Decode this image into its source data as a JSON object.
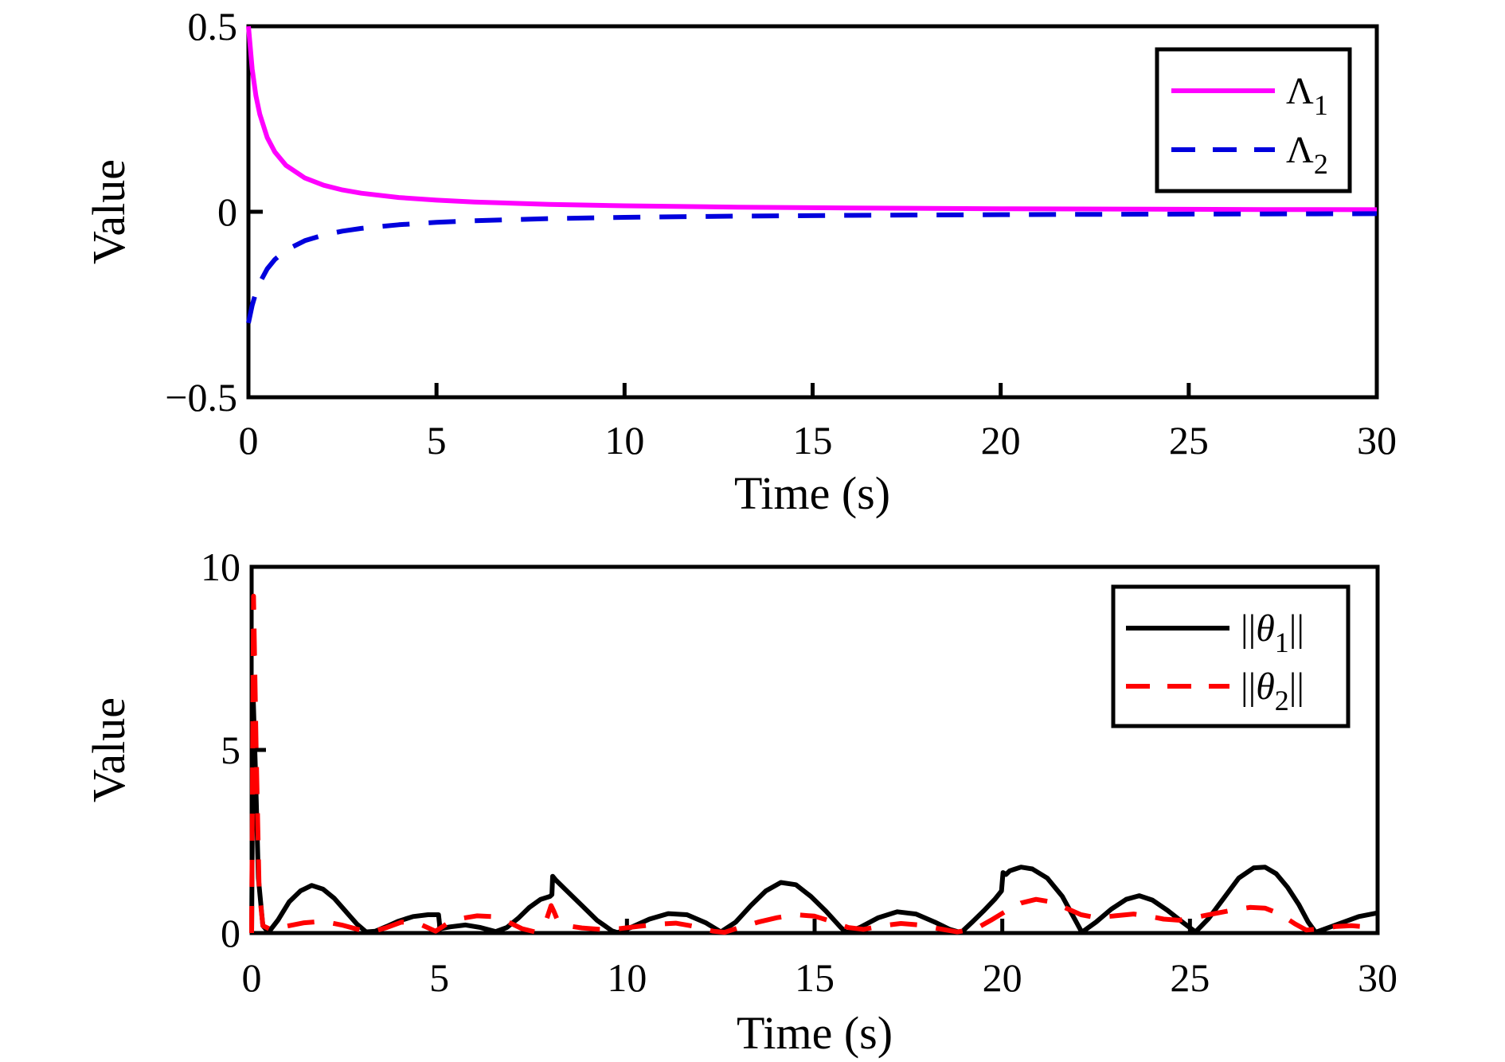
{
  "page": {
    "background": "#ffffff"
  },
  "chart_data": [
    {
      "id": "lambda-plot",
      "type": "line",
      "title": "",
      "xlabel": "Time (s)",
      "ylabel": "Value",
      "xlim": [
        0,
        30
      ],
      "ylim": [
        -0.5,
        0.5
      ],
      "grid": false,
      "legend_position": "top-right",
      "xticks": [
        {
          "v": 0,
          "label": "0"
        },
        {
          "v": 5,
          "label": "5"
        },
        {
          "v": 10,
          "label": "10"
        },
        {
          "v": 15,
          "label": "15"
        },
        {
          "v": 20,
          "label": "20"
        },
        {
          "v": 25,
          "label": "25"
        },
        {
          "v": 30,
          "label": "30"
        }
      ],
      "yticks": [
        {
          "v": 0.5,
          "label": "0.5"
        },
        {
          "v": 0,
          "label": "0"
        },
        {
          "v": -0.5,
          "label": "−0.5"
        }
      ],
      "series": [
        {
          "slug": "lambda1",
          "legend": {
            "prefix": "",
            "base": "Λ",
            "sub": "1",
            "suffix": "",
            "italic": false
          },
          "color": "#FF00FF",
          "style": "solid",
          "points": [
            [
              0,
              0.5
            ],
            [
              0.1,
              0.3846
            ],
            [
              0.2,
              0.3125
            ],
            [
              0.3,
              0.2632
            ],
            [
              0.5,
              0.2
            ],
            [
              0.7,
              0.1613
            ],
            [
              1,
              0.125
            ],
            [
              1.5,
              0.0909
            ],
            [
              2,
              0.0714
            ],
            [
              2.5,
              0.0588
            ],
            [
              3,
              0.05
            ],
            [
              4,
              0.0385
            ],
            [
              5,
              0.0313
            ],
            [
              6,
              0.0263
            ],
            [
              8,
              0.02
            ],
            [
              10,
              0.0161
            ],
            [
              13,
              0.0125
            ],
            [
              16,
              0.0102
            ],
            [
              20,
              0.0082
            ],
            [
              24,
              0.0068
            ],
            [
              27,
              0.0061
            ],
            [
              30,
              0.0055
            ]
          ]
        },
        {
          "slug": "lambda2",
          "legend": {
            "prefix": "",
            "base": "Λ",
            "sub": "2",
            "suffix": "",
            "italic": false
          },
          "color": "#0000DD",
          "style": "dashed",
          "points": [
            [
              0,
              -0.3
            ],
            [
              0.1,
              -0.2521
            ],
            [
              0.2,
              -0.2174
            ],
            [
              0.3,
              -0.1911
            ],
            [
              0.5,
              -0.1538
            ],
            [
              0.7,
              -0.1288
            ],
            [
              1,
              -0.1034
            ],
            [
              1.5,
              -0.0779
            ],
            [
              2,
              -0.0625
            ],
            [
              2.5,
              -0.0522
            ],
            [
              3,
              -0.0448
            ],
            [
              4,
              -0.0349
            ],
            [
              5,
              -0.0286
            ],
            [
              6,
              -0.0242
            ],
            [
              8,
              -0.0185
            ],
            [
              10,
              -0.015
            ],
            [
              13,
              -0.0117
            ],
            [
              16,
              -0.0096
            ],
            [
              20,
              -0.0078
            ],
            [
              24,
              -0.0065
            ],
            [
              27,
              -0.0058
            ],
            [
              30,
              -0.0052
            ]
          ]
        }
      ]
    },
    {
      "id": "theta-plot",
      "type": "line",
      "title": "",
      "xlabel": "Time (s)",
      "ylabel": "Value",
      "xlim": [
        0,
        30
      ],
      "ylim": [
        0,
        10
      ],
      "grid": false,
      "legend_position": "top-right",
      "xticks": [
        {
          "v": 0,
          "label": "0"
        },
        {
          "v": 5,
          "label": "5"
        },
        {
          "v": 10,
          "label": "10"
        },
        {
          "v": 15,
          "label": "15"
        },
        {
          "v": 20,
          "label": "20"
        },
        {
          "v": 25,
          "label": "25"
        },
        {
          "v": 30,
          "label": "30"
        }
      ],
      "yticks": [
        {
          "v": 10,
          "label": "10"
        },
        {
          "v": 5,
          "label": "5"
        },
        {
          "v": 0,
          "label": "0"
        }
      ],
      "series": [
        {
          "slug": "theta1-norm",
          "legend": {
            "prefix": "||",
            "base": "θ",
            "sub": "1",
            "suffix": "||",
            "italic": true
          },
          "color": "#000000",
          "style": "solid",
          "points": [
            [
              0,
              0
            ],
            [
              0.04,
              6.5
            ],
            [
              0.1,
              4.5
            ],
            [
              0.18,
              1.5
            ],
            [
              0.3,
              0.2
            ],
            [
              0.45,
              0.02
            ],
            [
              0.7,
              0.35
            ],
            [
              1,
              0.85
            ],
            [
              1.3,
              1.15
            ],
            [
              1.6,
              1.3
            ],
            [
              1.9,
              1.2
            ],
            [
              2.2,
              0.95
            ],
            [
              2.5,
              0.6
            ],
            [
              2.8,
              0.25
            ],
            [
              3.05,
              0.03
            ],
            [
              3.3,
              0.05
            ],
            [
              3.6,
              0.18
            ],
            [
              3.9,
              0.32
            ],
            [
              4.3,
              0.45
            ],
            [
              4.7,
              0.5
            ],
            [
              4.98,
              0.5
            ],
            [
              5.02,
              0.12
            ],
            [
              5.3,
              0.17
            ],
            [
              5.7,
              0.22
            ],
            [
              6.1,
              0.15
            ],
            [
              6.5,
              0.04
            ],
            [
              6.8,
              0.15
            ],
            [
              7.1,
              0.4
            ],
            [
              7.4,
              0.7
            ],
            [
              7.7,
              0.92
            ],
            [
              7.95,
              1
            ],
            [
              8,
              1.05
            ],
            [
              8.02,
              1.55
            ],
            [
              8.1,
              1.45
            ],
            [
              8.4,
              1.15
            ],
            [
              8.8,
              0.75
            ],
            [
              9.2,
              0.35
            ],
            [
              9.6,
              0.06
            ],
            [
              9.75,
              0.01
            ],
            [
              10.1,
              0.15
            ],
            [
              10.6,
              0.38
            ],
            [
              11.1,
              0.53
            ],
            [
              11.6,
              0.5
            ],
            [
              12.1,
              0.28
            ],
            [
              12.5,
              0.03
            ],
            [
              12.9,
              0.3
            ],
            [
              13.3,
              0.75
            ],
            [
              13.7,
              1.15
            ],
            [
              14.1,
              1.38
            ],
            [
              14.5,
              1.32
            ],
            [
              14.9,
              1
            ],
            [
              15.3,
              0.6
            ],
            [
              15.7,
              0.15
            ],
            [
              15.85,
              0.01
            ],
            [
              16.2,
              0.15
            ],
            [
              16.7,
              0.42
            ],
            [
              17.2,
              0.58
            ],
            [
              17.7,
              0.52
            ],
            [
              18.2,
              0.3
            ],
            [
              18.6,
              0.1
            ],
            [
              18.9,
              0.01
            ],
            [
              19.2,
              0.3
            ],
            [
              19.5,
              0.6
            ],
            [
              19.8,
              0.92
            ],
            [
              19.98,
              1.15
            ],
            [
              20.02,
              1.65
            ],
            [
              20.1,
              1.6
            ],
            [
              20.2,
              1.7
            ],
            [
              20.5,
              1.8
            ],
            [
              20.8,
              1.75
            ],
            [
              21.2,
              1.5
            ],
            [
              21.6,
              1
            ],
            [
              22,
              0.25
            ],
            [
              22.12,
              0.02
            ],
            [
              22.5,
              0.3
            ],
            [
              22.9,
              0.65
            ],
            [
              23.3,
              0.92
            ],
            [
              23.65,
              1.02
            ],
            [
              24,
              0.9
            ],
            [
              24.4,
              0.62
            ],
            [
              24.8,
              0.3
            ],
            [
              25.15,
              0.03
            ],
            [
              25.5,
              0.4
            ],
            [
              25.9,
              0.95
            ],
            [
              26.3,
              1.5
            ],
            [
              26.7,
              1.78
            ],
            [
              27,
              1.8
            ],
            [
              27.3,
              1.62
            ],
            [
              27.6,
              1.25
            ],
            [
              27.9,
              0.78
            ],
            [
              28.15,
              0.3
            ],
            [
              28.35,
              0.02
            ],
            [
              28.7,
              0.15
            ],
            [
              29.1,
              0.3
            ],
            [
              29.5,
              0.45
            ],
            [
              30,
              0.55
            ]
          ]
        },
        {
          "slug": "theta2-norm",
          "legend": {
            "prefix": "||",
            "base": "θ",
            "sub": "2",
            "suffix": "||",
            "italic": true
          },
          "color": "#FF0000",
          "style": "dashed",
          "points": [
            [
              0,
              0
            ],
            [
              0.05,
              9.2
            ],
            [
              0.12,
              5
            ],
            [
              0.2,
              1.2
            ],
            [
              0.3,
              0.2
            ],
            [
              0.5,
              0.1
            ],
            [
              0.9,
              0.18
            ],
            [
              1.4,
              0.28
            ],
            [
              1.9,
              0.32
            ],
            [
              2.4,
              0.22
            ],
            [
              2.9,
              0.08
            ],
            [
              3.2,
              0.03
            ],
            [
              3.6,
              0.15
            ],
            [
              4,
              0.3
            ],
            [
              4.4,
              0.28
            ],
            [
              4.9,
              0.05
            ],
            [
              5.2,
              0.25
            ],
            [
              5.6,
              0.4
            ],
            [
              6,
              0.47
            ],
            [
              6.4,
              0.45
            ],
            [
              6.8,
              0.32
            ],
            [
              7.2,
              0.12
            ],
            [
              7.55,
              0.03
            ],
            [
              7.85,
              0.35
            ],
            [
              7.98,
              0.75
            ],
            [
              8.05,
              0.6
            ],
            [
              8.15,
              0.35
            ],
            [
              8.4,
              0.2
            ],
            [
              8.8,
              0.14
            ],
            [
              9.3,
              0.1
            ],
            [
              9.8,
              0.12
            ],
            [
              10.3,
              0.18
            ],
            [
              10.8,
              0.24
            ],
            [
              11.3,
              0.27
            ],
            [
              11.8,
              0.18
            ],
            [
              12.3,
              0.05
            ],
            [
              12.6,
              0.02
            ],
            [
              13,
              0.15
            ],
            [
              13.5,
              0.3
            ],
            [
              14,
              0.42
            ],
            [
              14.5,
              0.5
            ],
            [
              15,
              0.46
            ],
            [
              15.5,
              0.3
            ],
            [
              15.9,
              0.15
            ],
            [
              16.3,
              0.1
            ],
            [
              16.8,
              0.2
            ],
            [
              17.3,
              0.26
            ],
            [
              17.8,
              0.22
            ],
            [
              18.3,
              0.12
            ],
            [
              18.8,
              0.03
            ],
            [
              19.3,
              0.12
            ],
            [
              19.7,
              0.35
            ],
            [
              20.1,
              0.6
            ],
            [
              20.5,
              0.82
            ],
            [
              20.9,
              0.92
            ],
            [
              21.3,
              0.85
            ],
            [
              21.7,
              0.68
            ],
            [
              22.1,
              0.5
            ],
            [
              22.5,
              0.42
            ],
            [
              23,
              0.47
            ],
            [
              23.5,
              0.52
            ],
            [
              23.9,
              0.46
            ],
            [
              24.3,
              0.38
            ],
            [
              24.7,
              0.35
            ],
            [
              25.1,
              0.42
            ],
            [
              25.6,
              0.52
            ],
            [
              26.1,
              0.62
            ],
            [
              26.6,
              0.7
            ],
            [
              27,
              0.68
            ],
            [
              27.4,
              0.52
            ],
            [
              27.8,
              0.25
            ],
            [
              28.1,
              0.08
            ],
            [
              28.5,
              0.12
            ],
            [
              28.9,
              0.18
            ],
            [
              29.3,
              0.2
            ],
            [
              29.7,
              0.17
            ],
            [
              30,
              0.15
            ]
          ]
        }
      ]
    }
  ]
}
